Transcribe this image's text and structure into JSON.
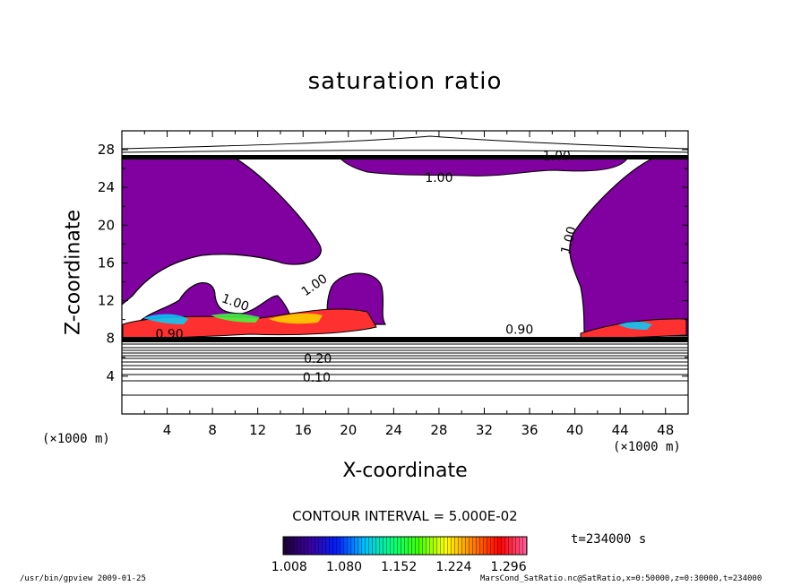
{
  "chart_data": {
    "type": "heatmap",
    "title": "saturation ratio",
    "xlabel": "X-coordinate",
    "ylabel": "Z-coordinate",
    "x_unit_label": "(×1000 m)",
    "xlim": [
      0,
      50
    ],
    "ylim": [
      0,
      30
    ],
    "x_ticks": [
      4,
      8,
      12,
      16,
      20,
      24,
      28,
      32,
      36,
      40,
      44,
      48
    ],
    "y_ticks": [
      4,
      8,
      12,
      16,
      20,
      24,
      28
    ],
    "contour_interval_label": "CONTOUR INTERVAL = 5.000E-02",
    "time_label": "t=234000 s",
    "colorbar": {
      "range": [
        1.0,
        1.32
      ],
      "tick_labels": [
        "1.008",
        "1.080",
        "1.152",
        "1.224",
        "1.296"
      ],
      "colors": [
        "#1a0033",
        "#3a00a0",
        "#0020ff",
        "#00c0ff",
        "#00ff80",
        "#40ff00",
        "#ffff00",
        "#ff8000",
        "#ff0000",
        "#ff60a0"
      ]
    },
    "fill_color": "#8000a0",
    "contour_labels": [
      {
        "text": "1.00",
        "x": 17.2,
        "z": 13.3,
        "rotate": -35
      },
      {
        "text": "1.00",
        "x": 9.9,
        "z": 11.4,
        "rotate": 20
      },
      {
        "text": "1.00",
        "x": 28.0,
        "z": 24.6,
        "rotate": 0
      },
      {
        "text": "1.00",
        "x": 39.8,
        "z": 18.3,
        "rotate": -75
      },
      {
        "text": "1.00",
        "x": 38.4,
        "z": 26.9,
        "rotate": 0
      },
      {
        "text": "0.90",
        "x": 4.2,
        "z": 8.0,
        "rotate": 0
      },
      {
        "text": "0.90",
        "x": 35.1,
        "z": 8.5,
        "rotate": 0
      },
      {
        "text": "0.20",
        "x": 17.3,
        "z": 5.4,
        "rotate": 0
      },
      {
        "text": "0.10",
        "x": 17.2,
        "z": 3.4,
        "rotate": 0
      }
    ]
  },
  "footer": {
    "left": "/usr/bin/gpview  2009-01-25",
    "right": "MarsCond_SatRatio.nc@SatRatio,x=0:50000,z=0:30000,t=234000"
  }
}
